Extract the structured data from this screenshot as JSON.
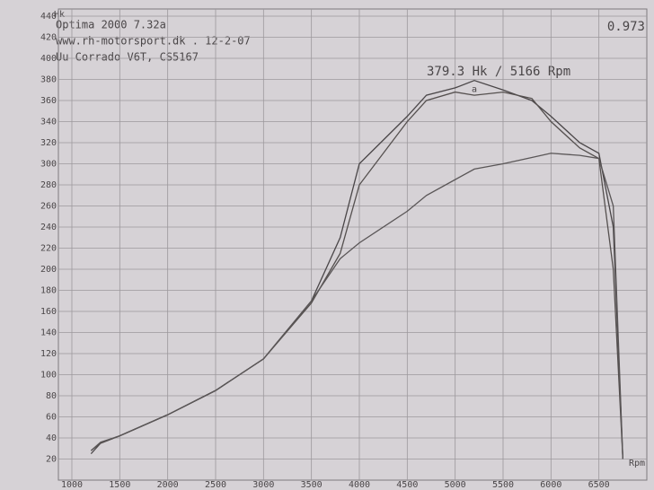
{
  "chart_data": {
    "type": "line",
    "header_lines": [
      "Optima 2000 7.32a",
      "www.rh-motorsport.dk  .  12-2-07",
      "Uu Corrado V6T, CS5167"
    ],
    "corner_value": "0.973",
    "peak_label": "379.3 Hk / 5166 Rpm",
    "peak_marker": "a",
    "y_label": "Hk",
    "x_label": "Rpm",
    "x": [
      1200,
      1300,
      1500,
      2000,
      2500,
      3000,
      3500,
      3800,
      4000,
      4500,
      4700,
      5000,
      5200,
      5500,
      5800,
      6000,
      6300,
      6500,
      6650,
      6750
    ],
    "series": [
      {
        "color": "#4a4648",
        "values": [
          25,
          35,
          42,
          62,
          85,
          115,
          170,
          230,
          300,
          345,
          365,
          372,
          379,
          370,
          360,
          345,
          320,
          310,
          240,
          20
        ]
      },
      {
        "color": "#55504f",
        "values": [
          28,
          35,
          42,
          62,
          85,
          115,
          168,
          215,
          280,
          340,
          360,
          368,
          365,
          368,
          362,
          340,
          315,
          305,
          200,
          20
        ]
      },
      {
        "color": "#5a5657",
        "values": [
          28,
          36,
          42,
          62,
          85,
          115,
          170,
          210,
          225,
          255,
          270,
          285,
          295,
          300,
          306,
          310,
          308,
          305,
          260,
          20
        ]
      }
    ],
    "xlim": [
      1000,
      7000
    ],
    "xticks": [
      1000,
      1500,
      2000,
      2500,
      3000,
      3500,
      4000,
      4500,
      5000,
      5500,
      6000,
      6500
    ],
    "ylim": [
      0,
      440
    ],
    "yticks": [
      20,
      40,
      60,
      80,
      100,
      120,
      140,
      160,
      180,
      200,
      220,
      240,
      260,
      280,
      300,
      320,
      340,
      360,
      380,
      400,
      420,
      440
    ],
    "grid": true
  }
}
